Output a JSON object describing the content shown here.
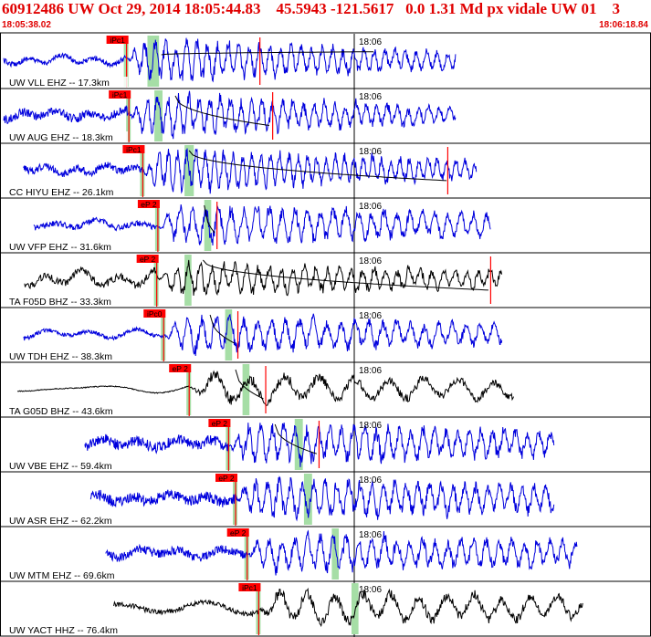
{
  "header": {
    "title": "60912486 UW Oct 29, 2014 18:05:44.83    45.5943 -121.5617   0.0 1.31 Md px vidale UW 01    3",
    "start_time": "18:05:38.02",
    "end_time": "18:06:18.84"
  },
  "colors": {
    "header": "#e00000",
    "trace_blue": "#0000dd",
    "trace_black": "#000000",
    "pick_red": "#ff0000",
    "window_green": "#a6dea6",
    "fit_curve_red": "#ff0000",
    "fit_curve_black": "#000000"
  },
  "chart_data": {
    "type": "line",
    "time_start": "18:05:38.02",
    "time_end": "18:06:18.84",
    "time_mark": "18:06",
    "traces": [
      {
        "label": "UW VLL EHZ -- 17.3km",
        "pick": "iPc1",
        "pick_t": 10.6,
        "color": "blue",
        "start_t": 0.0,
        "end_t": 39.0,
        "noise": 0.1,
        "amp": 0.95,
        "period": 0.9,
        "coda_t": 28.0,
        "green_t": [
          12.4,
          13.4
        ],
        "end_mark_t": 22.1,
        "end_red": false
      },
      {
        "label": "UW AUG EHZ -- 18.3km",
        "pick": "iPc1",
        "pick_t": 10.8,
        "color": "blue",
        "start_t": 0.0,
        "end_t": 39.0,
        "noise": 0.18,
        "amp": 0.95,
        "period": 0.9,
        "coda_t": 25.0,
        "green_t": [
          13.0,
          13.7
        ],
        "end_mark_t": 23.2,
        "end_red": true
      },
      {
        "label": "CC HIYU EHZ -- 26.1km",
        "pick": "iPc1",
        "pick_t": 12.0,
        "color": "blue",
        "start_t": 1.7,
        "end_t": 40.8,
        "noise": 0.15,
        "amp": 0.95,
        "period": 0.8,
        "coda_t": 30.0,
        "green_t": [
          15.6,
          16.4
        ],
        "end_mark_t": 38.3,
        "end_red": true
      },
      {
        "label": "UW VFP EHZ -- 31.6km",
        "pick": "eP 2",
        "pick_t": 13.3,
        "color": "blue",
        "start_t": 2.6,
        "end_t": 42.0,
        "noise": 0.12,
        "amp": 0.9,
        "period": 1.1,
        "coda_t": 45.0,
        "green_t": [
          17.3,
          17.9
        ],
        "end_mark_t": 18.4,
        "end_red": true
      },
      {
        "label": "TA F05D BHZ -- 33.3km",
        "pick": "eP 2",
        "pick_t": 13.2,
        "color": "black",
        "start_t": 1.8,
        "end_t": 43.0,
        "noise": 0.15,
        "amp": 0.75,
        "period": 1.0,
        "coda_t": 40.0,
        "green_t": [
          15.6,
          16.2
        ],
        "end_mark_t": 42.0,
        "end_red": true
      },
      {
        "label": "UW TDH EHZ -- 38.3km",
        "pick": "iPc0",
        "pick_t": 13.8,
        "color": "blue",
        "start_t": 1.7,
        "end_t": 43.0,
        "noise": 0.08,
        "amp": 0.85,
        "period": 1.2,
        "coda_t": 45.0,
        "green_t": [
          19.1,
          19.7
        ],
        "end_mark_t": 20.2,
        "end_red": true
      },
      {
        "label": "TA G05D BHZ -- 43.6km",
        "pick": "eP 2",
        "pick_t": 16.0,
        "color": "black",
        "start_t": 1.2,
        "end_t": 44.0,
        "noise": 0.02,
        "amp": 0.7,
        "period": 3.0,
        "coda_t": 60.0,
        "green_t": [
          20.6,
          21.2
        ],
        "end_mark_t": 22.6,
        "end_red": true
      },
      {
        "label": "UW VBE EHZ -- 59.4km",
        "pick": "eP 2",
        "pick_t": 19.4,
        "color": "blue",
        "start_t": 7.0,
        "end_t": 47.5,
        "noise": 0.22,
        "amp": 0.9,
        "period": 1.0,
        "coda_t": 60.0,
        "green_t": [
          25.1,
          25.8
        ],
        "end_mark_t": 27.2,
        "end_red": true
      },
      {
        "label": "UW ASR EHZ -- 62.2km",
        "pick": "eP 2",
        "pick_t": 20.0,
        "color": "blue",
        "start_t": 7.5,
        "end_t": 47.5,
        "noise": 0.22,
        "amp": 0.9,
        "period": 1.0,
        "coda_t": 60.0,
        "green_t": [
          25.9,
          26.6
        ],
        "end_mark_t": null,
        "end_red": false
      },
      {
        "label": "UW MTM EHZ -- 69.6km",
        "pick": "eP 2",
        "pick_t": 21.0,
        "color": "blue",
        "start_t": 8.8,
        "end_t": 49.5,
        "noise": 0.18,
        "amp": 0.85,
        "period": 1.1,
        "coda_t": 60.0,
        "green_t": [
          28.3,
          28.9
        ],
        "end_mark_t": null,
        "end_red": false
      },
      {
        "label": "UW YACT HHZ -- 76.4km",
        "pick": "iPc1",
        "pick_t": 22.0,
        "color": "black",
        "start_t": 9.5,
        "end_t": 50.0,
        "noise": 0.1,
        "amp": 0.75,
        "period": 2.4,
        "coda_t": 60.0,
        "green_t": [
          30.0,
          30.6
        ],
        "end_mark_t": null,
        "end_red": false
      }
    ]
  }
}
